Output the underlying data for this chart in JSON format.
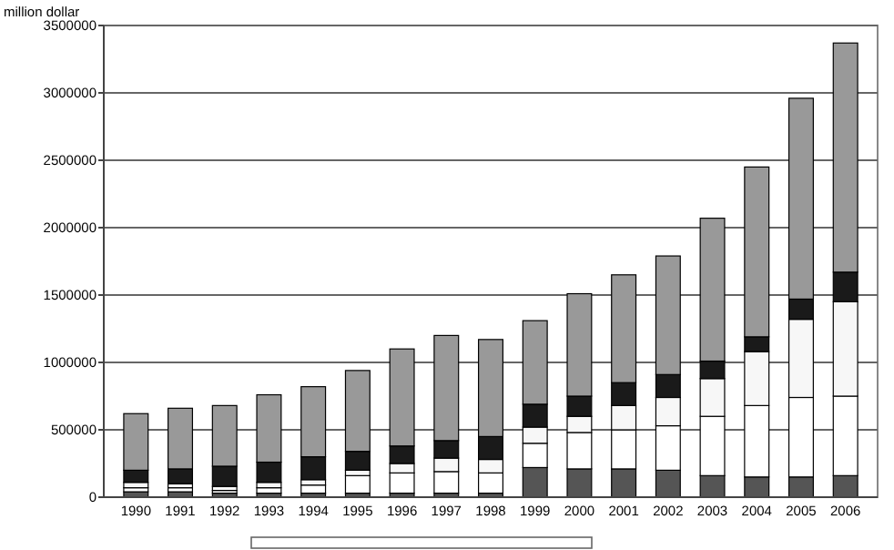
{
  "chart_data": {
    "type": "bar",
    "stacked": true,
    "ylabel": "million dollar",
    "categories": [
      "1990",
      "1991",
      "1992",
      "1993",
      "1994",
      "1995",
      "1996",
      "1997",
      "1998",
      "1999",
      "2000",
      "2001",
      "2002",
      "2003",
      "2004",
      "2005",
      "2006"
    ],
    "series": [
      {
        "color": "#555555",
        "values": [
          40000,
          40000,
          30000,
          30000,
          30000,
          30000,
          30000,
          30000,
          30000,
          220000,
          210000,
          210000,
          200000,
          160000,
          150000,
          150000,
          160000
        ]
      },
      {
        "color": "#ffffff",
        "values": [
          30000,
          30000,
          20000,
          40000,
          60000,
          130000,
          150000,
          160000,
          150000,
          180000,
          270000,
          290000,
          330000,
          440000,
          530000,
          590000,
          590000
        ]
      },
      {
        "color": "#f7f7f7",
        "values": [
          40000,
          30000,
          30000,
          40000,
          40000,
          40000,
          70000,
          100000,
          100000,
          120000,
          120000,
          180000,
          210000,
          280000,
          400000,
          580000,
          700000
        ]
      },
      {
        "color": "#1a1a1a",
        "values": [
          90000,
          110000,
          150000,
          150000,
          170000,
          140000,
          130000,
          130000,
          170000,
          170000,
          150000,
          170000,
          170000,
          130000,
          110000,
          150000,
          220000
        ]
      },
      {
        "color": "#999999",
        "values": [
          420000,
          450000,
          450000,
          500000,
          520000,
          600000,
          720000,
          780000,
          720000,
          620000,
          760000,
          800000,
          880000,
          1060000,
          1260000,
          1490000,
          1700000
        ]
      }
    ],
    "ylim": [
      0,
      3500000
    ],
    "yticks": [
      0,
      500000,
      1000000,
      1500000,
      2000000,
      2500000,
      3000000,
      3500000
    ],
    "grid": "y"
  }
}
